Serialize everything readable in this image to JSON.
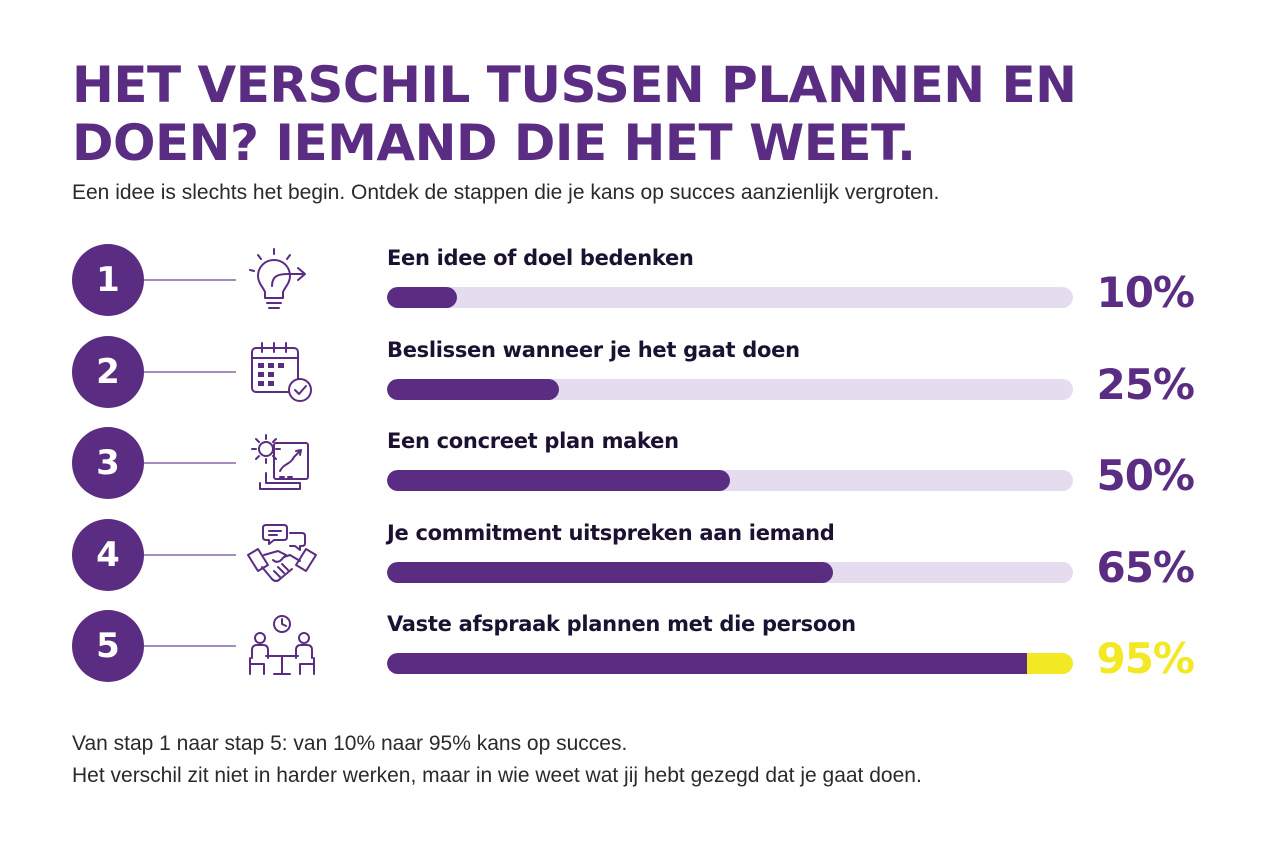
{
  "title": "HET VERSCHIL TUSSEN PLANNEN EN DOEN? IEMAND DIE HET WEET.",
  "subtitle": "Een idee is slechts het begin. Ontdek de stappen die je kans op succes aanzienlijk vergroten.",
  "colors": {
    "primary": "#5a2d82",
    "track": "#e5dcef",
    "highlight": "#f2e824",
    "connector": "#a48bc0"
  },
  "chart_data": {
    "type": "bar",
    "orientation": "horizontal",
    "categories": [
      "Een idee of doel bedenken",
      "Beslissen wanneer je het gaat doen",
      "Een concreet plan maken",
      "Je commitment uitspreken aan iemand",
      "Vaste afspraak plannen met die persoon"
    ],
    "values": [
      10,
      25,
      50,
      65,
      95
    ],
    "ylim": [
      0,
      100
    ],
    "value_labels": [
      "10%",
      "25%",
      "50%",
      "65%",
      "95%"
    ]
  },
  "steps": [
    {
      "number": "1",
      "label": "Een idee of doel bedenken",
      "value": 10,
      "value_label": "10%",
      "icon": "lightbulb-arrow-icon",
      "highlight": false
    },
    {
      "number": "2",
      "label": "Beslissen wanneer je het gaat doen",
      "value": 25,
      "value_label": "25%",
      "icon": "calendar-check-icon",
      "highlight": false
    },
    {
      "number": "3",
      "label": "Een concreet plan maken",
      "value": 50,
      "value_label": "50%",
      "icon": "gear-plan-icon",
      "highlight": false
    },
    {
      "number": "4",
      "label": "Je commitment uitspreken aan iemand",
      "value": 65,
      "value_label": "65%",
      "icon": "handshake-chat-icon",
      "highlight": false
    },
    {
      "number": "5",
      "label": "Vaste afspraak plannen met die persoon",
      "value": 95,
      "value_label": "95%",
      "icon": "meeting-clock-icon",
      "highlight": true
    }
  ],
  "footer": {
    "line1": "Van stap 1 naar stap 5: van 10% naar 95% kans op succes.",
    "line2": "Het verschil zit niet in harder werken, maar in wie weet wat jij hebt gezegd dat je gaat doen."
  }
}
